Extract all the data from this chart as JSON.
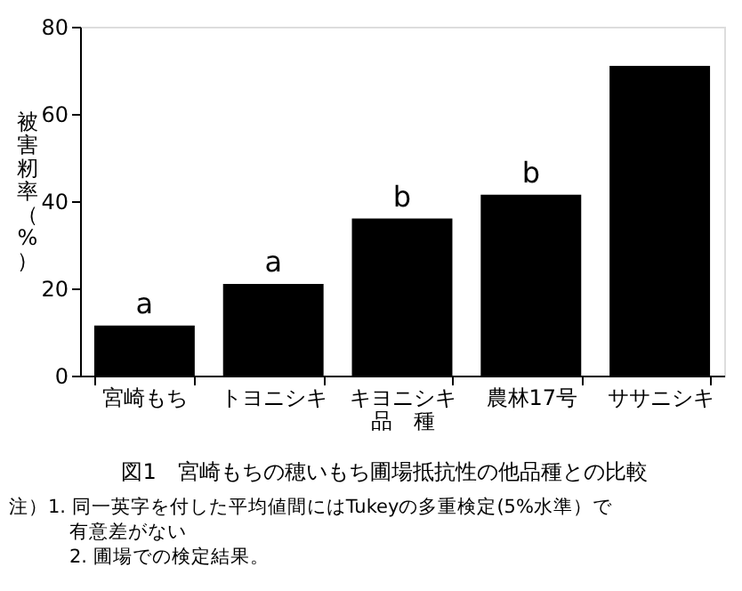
{
  "chart_data": {
    "type": "bar",
    "title": "図1　宮崎もちの穂いもち圃場抵抗性の他品種との比較",
    "xlabel": "品　種",
    "ylabel": "被害籾率（%）",
    "categories": [
      "宮崎もち",
      "トヨニシキ",
      "キヨニシキ",
      "農林17号",
      "ササニシキ"
    ],
    "values": [
      11.5,
      21,
      36,
      41.5,
      71
    ],
    "color": "#000000",
    "value_labels": [
      "a",
      "a",
      "b",
      "b",
      null
    ],
    "ylim": [
      0,
      80
    ],
    "yticks": [
      0,
      20,
      40,
      60,
      80
    ],
    "grid": false,
    "annotations": [
      "注）1. 同一英字を付した平均値間にはTukeyの多重検定(5%水準）で",
      "有意差がない",
      "2. 圃場での検定結果。"
    ]
  }
}
